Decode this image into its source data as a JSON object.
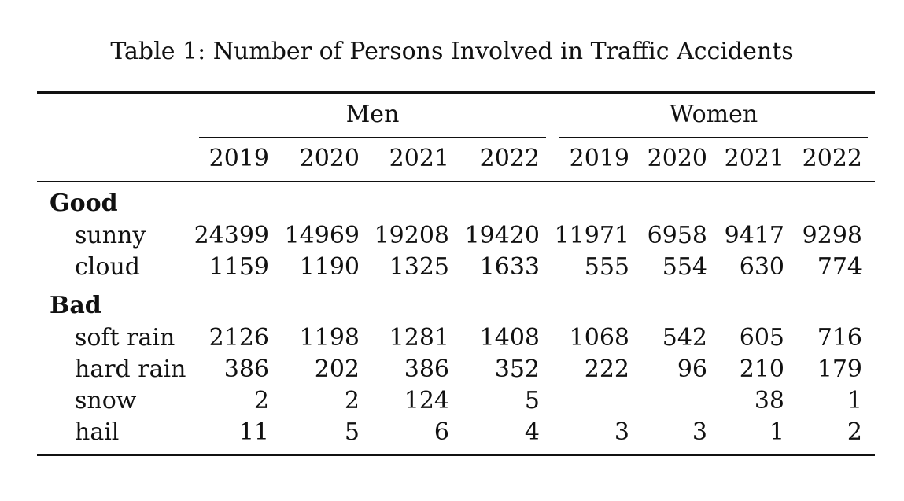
{
  "caption": "Table 1: Number of Persons Involved in Traffic Accidents",
  "groups": [
    "Men",
    "Women"
  ],
  "years": [
    "2019",
    "2020",
    "2021",
    "2022",
    "2019",
    "2020",
    "2021",
    "2022"
  ],
  "sections": [
    {
      "label": "Good",
      "rows": [
        {
          "name": "sunny",
          "values": [
            "24399",
            "14969",
            "19208",
            "19420",
            "11971",
            "6958",
            "9417",
            "9298"
          ]
        },
        {
          "name": "cloud",
          "values": [
            "1159",
            "1190",
            "1325",
            "1633",
            "555",
            "554",
            "630",
            "774"
          ]
        }
      ]
    },
    {
      "label": "Bad",
      "rows": [
        {
          "name": "soft rain",
          "values": [
            "2126",
            "1198",
            "1281",
            "1408",
            "1068",
            "542",
            "605",
            "716"
          ]
        },
        {
          "name": "hard rain",
          "values": [
            "386",
            "202",
            "386",
            "352",
            "222",
            "96",
            "210",
            "179"
          ]
        },
        {
          "name": "snow",
          "values": [
            "2",
            "2",
            "124",
            "5",
            "",
            "",
            "38",
            "1"
          ]
        },
        {
          "name": "hail",
          "values": [
            "11",
            "5",
            "6",
            "4",
            "3",
            "3",
            "1",
            "2"
          ]
        }
      ]
    }
  ]
}
